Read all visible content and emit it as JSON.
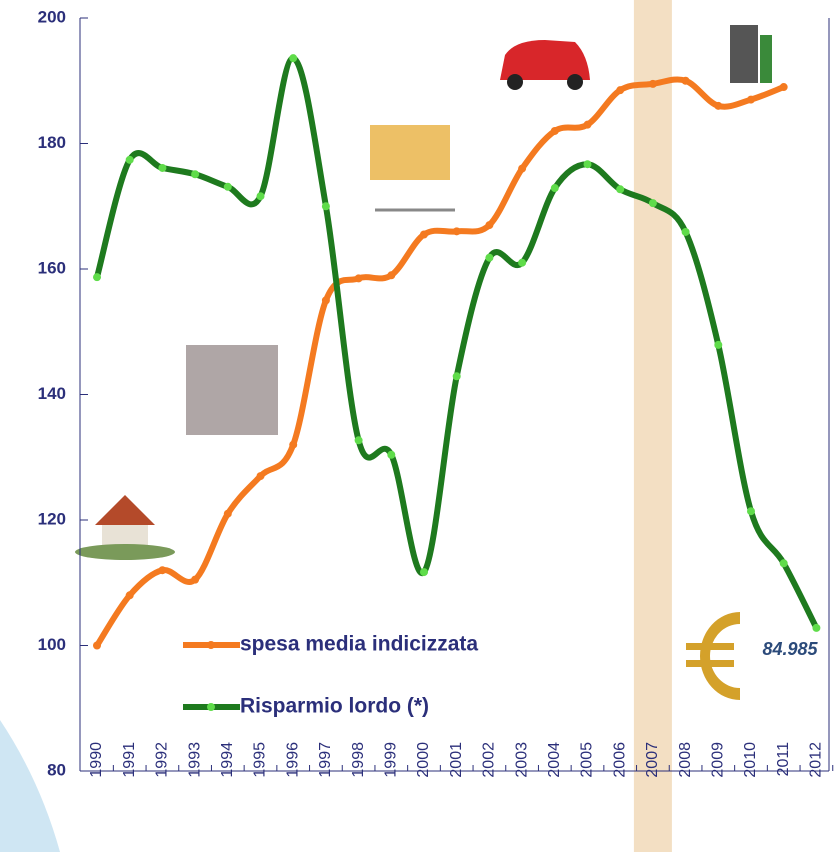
{
  "chart_data": {
    "type": "line",
    "categories": [
      "1990",
      "1991",
      "1992",
      "1993",
      "1994",
      "1995",
      "1996",
      "1997",
      "1998",
      "1999",
      "2000",
      "2001",
      "2002",
      "2003",
      "2004",
      "2005",
      "2006",
      "2007",
      "2008",
      "2009",
      "2010",
      "2011",
      "2012"
    ],
    "series": [
      {
        "name": "spesa media indicizzata",
        "color": "#f47a20",
        "values": [
          100,
          108,
          112,
          110.5,
          121,
          127,
          132,
          155,
          158.5,
          159,
          165.5,
          166,
          167,
          176,
          182,
          183,
          188.5,
          189.5,
          190,
          186,
          187,
          189,
          null
        ]
      },
      {
        "name": "Risparmio lordo (*)",
        "color": "#1e7a1e",
        "values": [
          158.7,
          177.4,
          176.1,
          175.1,
          173.1,
          171.6,
          193.6,
          170,
          132.7,
          130.4,
          111.7,
          142.9,
          161.8,
          161,
          172.9,
          176.7,
          172.7,
          170.5,
          165.9,
          147.9,
          121.4,
          113.1,
          102.8
        ]
      }
    ],
    "ylim": [
      80,
      200
    ],
    "yticks": [
      80,
      100,
      120,
      140,
      160,
      180,
      200
    ],
    "highlight_category": "2007",
    "annotation": "84.985"
  }
}
